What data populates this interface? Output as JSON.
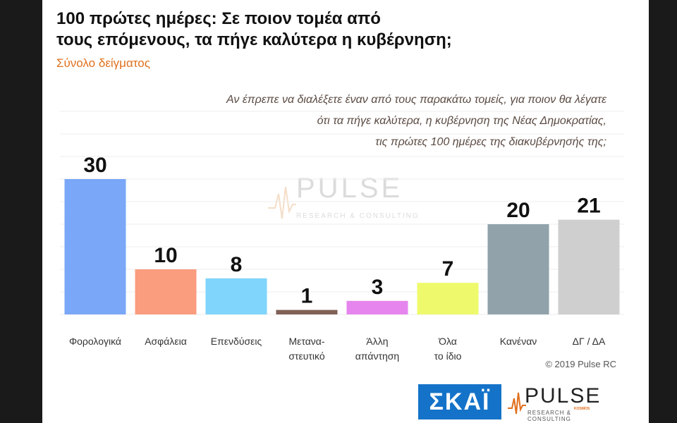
{
  "header": {
    "title_line1": "100 πρώτες ημέρες: Σε ποιον τομέα από",
    "title_line2": "τους επόμενους, τα πήγε καλύτερα η κυβέρνηση;",
    "subtitle": "Σύνολο δείγματος"
  },
  "question": {
    "line1": "Αν έπρεπε να διαλέξετε έναν από τους παρακάτω τομείς, για ποιον θα λέγατε",
    "line2": "ότι τα πήγε καλύτερα, η κυβέρνηση της Νέας Δημοκρατίας,",
    "line3": "τις πρώτες 100 ημέρες της διακυβέρνησής της;"
  },
  "watermark": {
    "name": "PULSE",
    "sub": "RESEARCH & CONSULTING"
  },
  "footer": {
    "copyright": "© 2019 Pulse RC",
    "skai_logo": "ΣΚΑΪ",
    "pulse_logo": "PULSE",
    "pulse_sub": "RESEARCH & CONSULTING",
    "pulse_small": "KOSMOS"
  },
  "chart_data": {
    "type": "bar",
    "categories": [
      [
        "Φορολογικά"
      ],
      [
        "Ασφάλεια"
      ],
      [
        "Επενδύσεις"
      ],
      [
        "Μετανα-",
        "στευτικό"
      ],
      [
        "Άλλη",
        "απάντηση"
      ],
      [
        "Όλα",
        "το ίδιο"
      ],
      [
        "Κανέναν"
      ],
      [
        "ΔΓ / ΔΑ"
      ]
    ],
    "values": [
      30,
      10,
      8,
      1,
      3,
      7,
      20,
      21
    ],
    "colors": [
      "#7aa7f7",
      "#fa9c7e",
      "#7fd5fb",
      "#806256",
      "#e685ed",
      "#eefa6b",
      "#91a2ab",
      "#cfcfcf"
    ],
    "ylim": [
      0,
      35
    ],
    "grid": true,
    "legend": "none"
  }
}
